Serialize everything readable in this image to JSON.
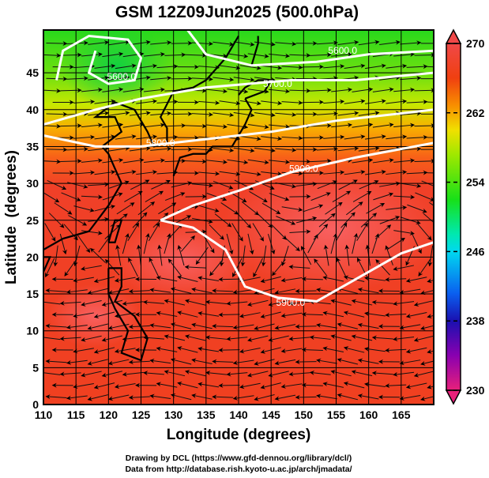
{
  "chart_data": {
    "type": "heatmap",
    "title": "GSM 12Z09Jun2025 (500.0hPa)",
    "xlabel": "Longitude (degrees)",
    "ylabel": "Latitude  (degrees)",
    "xlim": [
      110,
      170
    ],
    "ylim": [
      0,
      50
    ],
    "xticks": [
      "110",
      "115",
      "120",
      "125",
      "130",
      "135",
      "140",
      "145",
      "150",
      "155",
      "160",
      "165"
    ],
    "yticks": [
      "0",
      "5",
      "10",
      "15",
      "20",
      "25",
      "30",
      "35",
      "40",
      "45"
    ],
    "grid": true,
    "shading_variable": "temperature (K)",
    "colorbar": {
      "range": [
        230,
        270
      ],
      "ticks": [
        "270",
        "262",
        "254",
        "246",
        "238",
        "230"
      ],
      "colors": [
        "#e8207a",
        "#8a00b0",
        "#1a10b0",
        "#0a60f0",
        "#00d8f0",
        "#00e8b0",
        "#18e018",
        "#a0e800",
        "#f0e000",
        "#f89000",
        "#f04010",
        "#f04848"
      ]
    },
    "contours": {
      "variable": "geopotential height (m)",
      "labels": [
        "5600.0",
        "5600.0",
        "5700.0",
        "5800.0",
        "5900.0",
        "5900.0"
      ]
    }
  },
  "credits": {
    "line1": "Drawing by DCL (https://www.gfd-dennou.org/library/dcl/)",
    "line2": "Data from http://database.rish.kyoto-u.ac.jp/arch/jmadata/"
  }
}
